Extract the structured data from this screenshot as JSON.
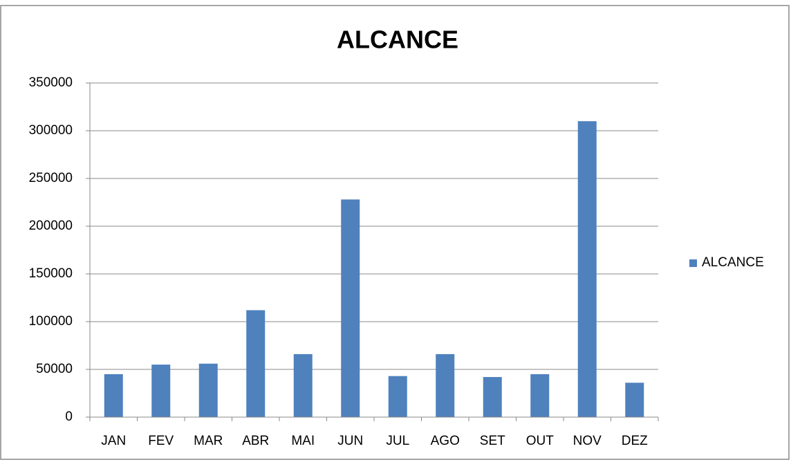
{
  "chart_data": {
    "type": "bar",
    "title": "ALCANCE",
    "categories": [
      "JAN",
      "FEV",
      "MAR",
      "ABR",
      "MAI",
      "JUN",
      "JUL",
      "AGO",
      "SET",
      "OUT",
      "NOV",
      "DEZ"
    ],
    "series": [
      {
        "name": "ALCANCE",
        "color": "#4f81bd",
        "values": [
          45000,
          55000,
          56000,
          112000,
          66000,
          228000,
          43000,
          66000,
          42000,
          45000,
          310000,
          36000
        ]
      }
    ],
    "ylim": [
      0,
      350000
    ],
    "yticks": [
      0,
      50000,
      100000,
      150000,
      200000,
      250000,
      300000,
      350000
    ],
    "grid": true,
    "legend": "right"
  }
}
